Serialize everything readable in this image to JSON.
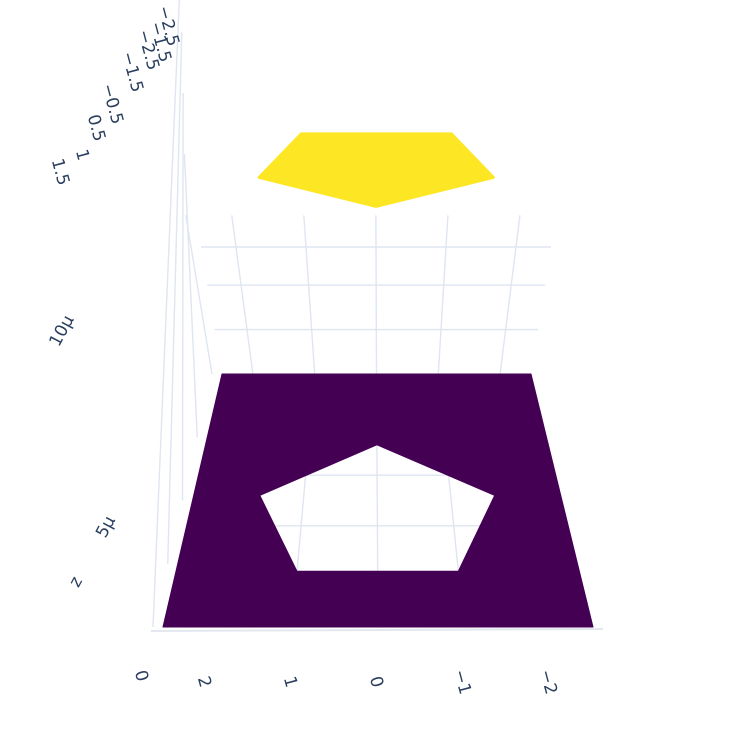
{
  "chart_data": {
    "type": "surface",
    "colorscale": "Viridis",
    "colors": {
      "low": "#440154",
      "high": "#fde725",
      "grid": "#dfe6f0",
      "tick_text": "#2a3f5f"
    },
    "axes": {
      "x": {
        "ticks": [
          "2",
          "1",
          "0",
          "−1",
          "−2"
        ]
      },
      "y": {
        "ticks": [
          "1.5",
          "1",
          "0.5",
          "−0.5",
          "−1.5",
          "−2.5"
        ]
      },
      "z": {
        "title": "z",
        "ticks": [
          "0",
          "5μ",
          "10μ"
        ]
      }
    },
    "surfaces": [
      {
        "name": "bottom square with pentagon hole",
        "z": 0,
        "outer": [
          [
            2.5,
            -2.5
          ],
          [
            -2.5,
            -2.5
          ],
          [
            -2.5,
            2.5
          ],
          [
            2.5,
            2.5
          ]
        ],
        "hole": [
          [
            0,
            1.1
          ],
          [
            1.6,
            0.1
          ],
          [
            1.0,
            -1.4
          ],
          [
            -1.0,
            -1.4
          ],
          [
            -1.6,
            0.1
          ]
        ],
        "color_value": 0
      },
      {
        "name": "top pentagon",
        "z": 1.2e-05,
        "polygon": [
          [
            0,
            1.1
          ],
          [
            1.6,
            0.1
          ],
          [
            1.0,
            -1.4
          ],
          [
            -1.0,
            -1.4
          ],
          [
            -1.6,
            0.1
          ]
        ],
        "color_value": 1
      }
    ],
    "grid": true
  }
}
